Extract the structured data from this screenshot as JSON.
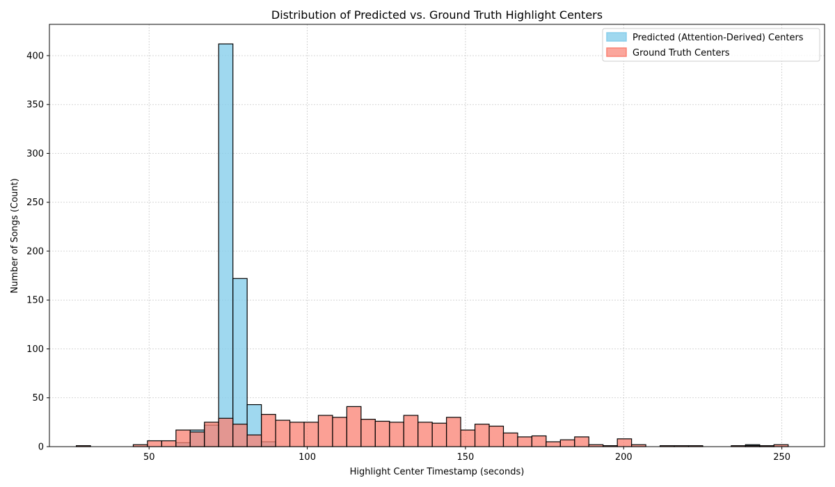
{
  "colors": {
    "predicted": "#87CEEB",
    "ground_truth": "#FA8072",
    "edge": "#000000",
    "grid": "#b0b0b0"
  },
  "chart_data": {
    "type": "histogram",
    "title": "Distribution of Predicted vs. Ground Truth Highlight Centers",
    "xlabel": "Highlight Center Timestamp (seconds)",
    "ylabel": "Number of Songs (Count)",
    "xlim": [
      18.5,
      263.5
    ],
    "ylim": [
      0,
      432
    ],
    "xticks": [
      50,
      100,
      150,
      200,
      250
    ],
    "yticks": [
      0,
      50,
      100,
      150,
      200,
      250,
      300,
      350,
      400
    ],
    "grid": true,
    "legend_position": "top-right",
    "bin_edges": [
      27,
      31.5,
      36,
      40.5,
      45,
      49.5,
      54,
      58.5,
      63,
      67.5,
      72,
      76.5,
      81,
      85.5,
      90,
      94.5,
      99,
      103.5,
      108,
      112.5,
      117,
      121.5,
      126,
      130.5,
      135,
      139.5,
      144,
      148.5,
      153,
      157.5,
      162,
      166.5,
      171,
      175.5,
      180,
      184.5,
      189,
      193.5,
      198,
      202.5,
      207,
      211.5,
      216,
      220.5,
      225,
      229.5,
      234,
      238.5,
      243,
      247.5,
      252
    ],
    "series": [
      {
        "name": "Predicted (Attention-Derived) Centers",
        "counts": [
          0,
          0,
          0,
          0,
          0,
          0,
          0,
          4,
          17,
          22,
          412,
          172,
          43,
          5,
          0,
          0,
          0,
          0,
          0,
          0,
          0,
          0,
          0,
          0,
          0,
          0,
          0,
          0,
          0,
          0,
          0,
          0,
          0,
          0,
          0,
          0,
          0,
          0,
          0,
          0,
          0,
          0,
          0,
          0,
          0,
          0,
          0,
          2,
          1,
          0
        ]
      },
      {
        "name": "Ground Truth Centers",
        "counts": [
          1,
          0,
          0,
          0,
          2,
          6,
          6,
          17,
          15,
          25,
          29,
          23,
          12,
          33,
          27,
          25,
          25,
          32,
          30,
          41,
          28,
          26,
          25,
          32,
          25,
          24,
          30,
          17,
          23,
          21,
          14,
          10,
          11,
          5,
          7,
          10,
          2,
          1,
          8,
          2,
          0,
          1,
          1,
          1,
          0,
          0,
          1,
          1,
          1,
          2
        ]
      }
    ]
  }
}
